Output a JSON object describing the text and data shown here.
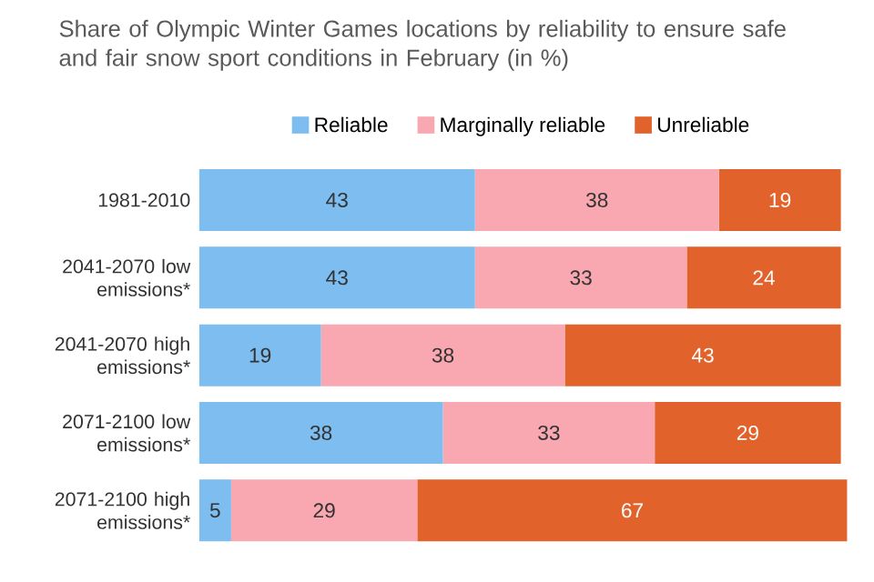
{
  "chart_data": {
    "type": "bar",
    "orientation": "horizontal",
    "stacked": true,
    "subtitle": "Share of Olympic Winter Games locations by reliability to ensure safe and fair snow sport conditions in February (in %)",
    "categories": [
      "1981-2010",
      "2041-2070 low emissions*",
      "2041-2070 high emissions*",
      "2071-2100 low emissions*",
      "2071-2100 high emissions*"
    ],
    "series": [
      {
        "name": "Reliable",
        "color": "#7dbdf0",
        "values": [
          43,
          43,
          19,
          38,
          5
        ]
      },
      {
        "name": "Marginally reliable",
        "color": "#f9a7b0",
        "values": [
          38,
          33,
          38,
          33,
          29
        ]
      },
      {
        "name": "Unreliable",
        "color": "#e2622b",
        "values": [
          19,
          24,
          43,
          29,
          67
        ]
      }
    ],
    "data_labels": true,
    "legend": "top",
    "grid": false,
    "tick_labels": "y"
  }
}
